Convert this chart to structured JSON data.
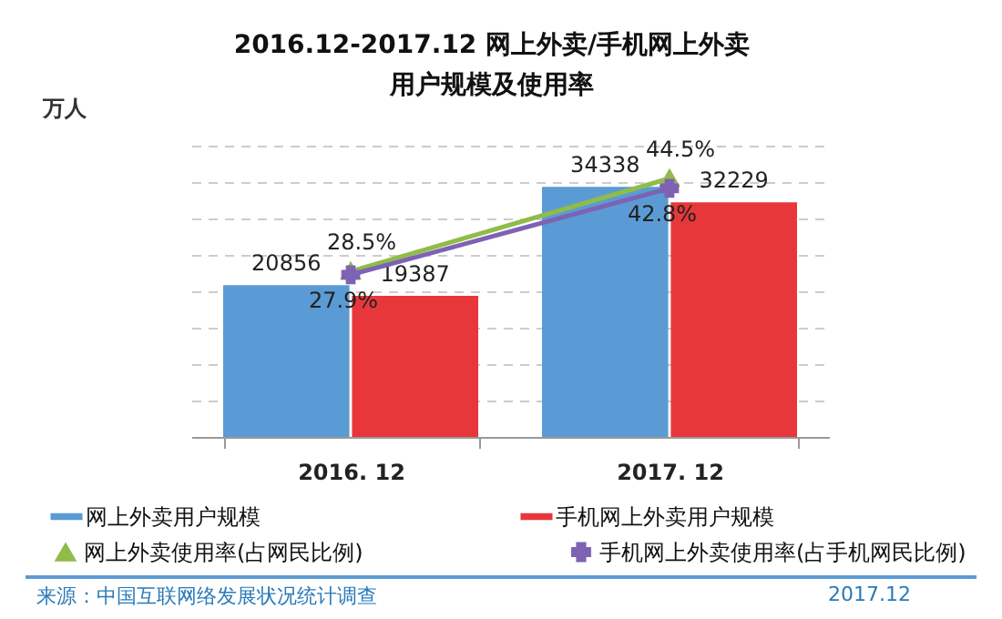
{
  "chart_data": {
    "type": "bar",
    "title": "2016.12-2017.12 网上外卖/手机网上外卖用户规模及使用率",
    "ylabel": "万人",
    "categories": [
      "2016. 12",
      "2017. 12"
    ],
    "series": [
      {
        "name": "网上外卖用户规模",
        "color": "#5b9bd5",
        "values": [
          20856,
          34338
        ]
      },
      {
        "name": "手机网上外卖用户规模",
        "color": "#e8373b",
        "values": [
          19387,
          32229
        ]
      },
      {
        "name": "网上外卖使用率(占网民比例)",
        "type": "line",
        "axis": "y2",
        "color": "#8fbc4a",
        "marker": "triangle",
        "values": [
          28.5,
          44.5
        ],
        "value_labels": [
          "28.5%",
          "44.5%"
        ]
      },
      {
        "name": "手机网上外卖使用率(占手机网民比例)",
        "type": "line",
        "axis": "y2",
        "color": "#7e62b3",
        "marker": "cross",
        "values": [
          27.9,
          42.8
        ],
        "value_labels": [
          "27.9%",
          "42.8%"
        ]
      }
    ],
    "ylim": [
      0,
      40000
    ],
    "yticks": [
      {
        "value": 0,
        "label": null
      },
      {
        "value": 5000,
        "label": null
      },
      {
        "value": 10000,
        "label": null
      },
      {
        "value": 15000,
        "label": null
      },
      {
        "value": 20000,
        "label": null
      },
      {
        "value": 25000,
        "label": null
      },
      {
        "value": 30000,
        "label": null
      },
      {
        "value": 35000,
        "label": null
      },
      {
        "value": 40000,
        "label": null
      }
    ],
    "tick_labels": "x",
    "grid": "y",
    "legend": "bottom",
    "data_labels": true,
    "annotations": [
      "来源：中国互联网络发展状况统计调查",
      "2017.12"
    ]
  }
}
